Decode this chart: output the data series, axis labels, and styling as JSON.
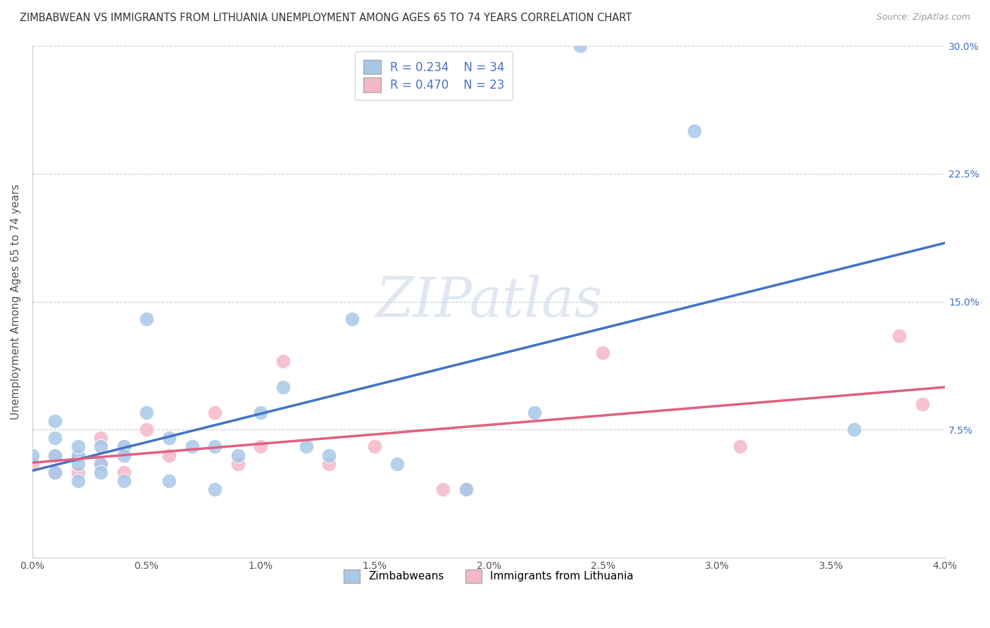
{
  "title": "ZIMBABWEAN VS IMMIGRANTS FROM LITHUANIA UNEMPLOYMENT AMONG AGES 65 TO 74 YEARS CORRELATION CHART",
  "source": "Source: ZipAtlas.com",
  "ylabel": "Unemployment Among Ages 65 to 74 years",
  "xlim": [
    0.0,
    0.04
  ],
  "ylim": [
    0.0,
    0.3
  ],
  "xtick_labels": [
    "0.0%",
    "0.5%",
    "1.0%",
    "1.5%",
    "2.0%",
    "2.5%",
    "3.0%",
    "3.5%",
    "4.0%"
  ],
  "xtick_vals": [
    0.0,
    0.005,
    0.01,
    0.015,
    0.02,
    0.025,
    0.03,
    0.035,
    0.04
  ],
  "ytick_vals": [
    0.0,
    0.075,
    0.15,
    0.225,
    0.3
  ],
  "ytick_labels_right": [
    "7.5%",
    "15.0%",
    "22.5%",
    "30.0%"
  ],
  "legend_line1": "R = 0.234    N = 34",
  "legend_line2": "R = 0.470    N = 23",
  "color_blue": "#a8c8e8",
  "color_pink": "#f5b8c8",
  "color_line_blue": "#4472c4",
  "color_line_pink": "#e06080",
  "color_line_dashed": "#bbbbbb",
  "watermark": "ZIPatlas",
  "zimbabwean_x": [
    0.0,
    0.001,
    0.001,
    0.001,
    0.001,
    0.002,
    0.002,
    0.002,
    0.002,
    0.003,
    0.003,
    0.003,
    0.004,
    0.004,
    0.004,
    0.005,
    0.005,
    0.006,
    0.006,
    0.007,
    0.008,
    0.008,
    0.009,
    0.01,
    0.011,
    0.012,
    0.013,
    0.014,
    0.016,
    0.019,
    0.022,
    0.024,
    0.029,
    0.036
  ],
  "zimbabwean_y": [
    0.06,
    0.08,
    0.07,
    0.06,
    0.05,
    0.06,
    0.065,
    0.055,
    0.045,
    0.065,
    0.055,
    0.05,
    0.065,
    0.06,
    0.045,
    0.14,
    0.085,
    0.07,
    0.045,
    0.065,
    0.065,
    0.04,
    0.06,
    0.085,
    0.1,
    0.065,
    0.06,
    0.14,
    0.055,
    0.04,
    0.085,
    0.3,
    0.25,
    0.075
  ],
  "lithuania_x": [
    0.0,
    0.001,
    0.001,
    0.002,
    0.002,
    0.003,
    0.003,
    0.004,
    0.004,
    0.005,
    0.006,
    0.008,
    0.009,
    0.01,
    0.011,
    0.013,
    0.015,
    0.018,
    0.019,
    0.025,
    0.031,
    0.038,
    0.039
  ],
  "lithuania_y": [
    0.055,
    0.06,
    0.05,
    0.06,
    0.05,
    0.07,
    0.055,
    0.065,
    0.05,
    0.075,
    0.06,
    0.085,
    0.055,
    0.065,
    0.115,
    0.055,
    0.065,
    0.04,
    0.04,
    0.12,
    0.065,
    0.13,
    0.09
  ],
  "bottom_legend1": "Zimbabweans",
  "bottom_legend2": "Immigrants from Lithuania"
}
